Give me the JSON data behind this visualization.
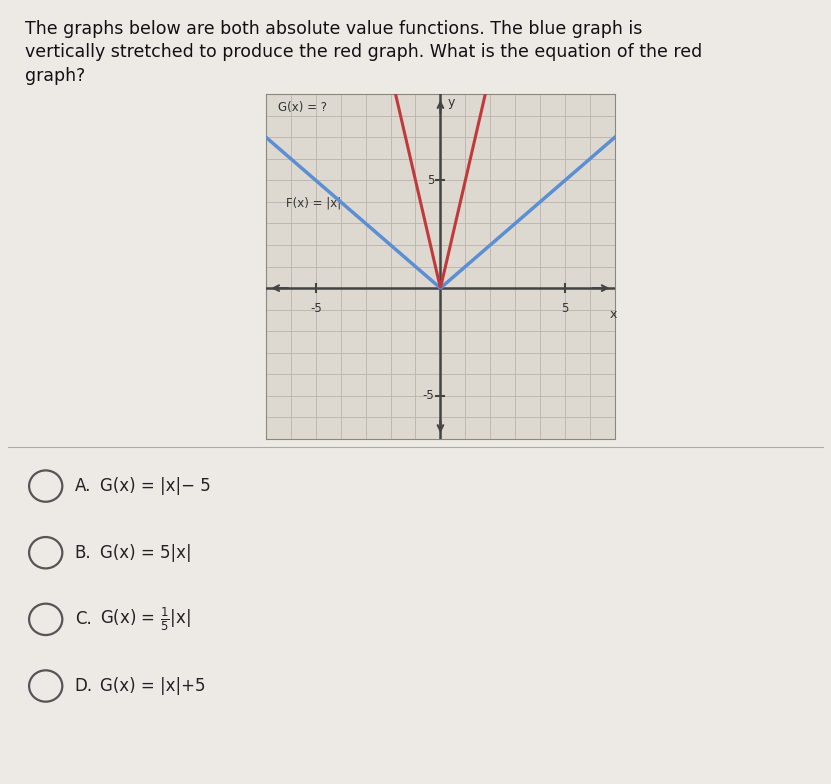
{
  "title_line1": "The graphs below are both absolute value functions. The blue graph is",
  "title_line2": "vertically stretched to produce the red graph. What is the equation of the red",
  "title_line3": "graph?",
  "title_fontsize": 12.5,
  "background_color": "#ede9e5",
  "graph_bg": "#ddd8d0",
  "grid_color": "#c0b8b0",
  "blue_label": "F(x) = |x|",
  "red_label": "G(x) = ?",
  "blue_color": "#5b8fd4",
  "red_color": "#c0393b",
  "axis_color": "#444444",
  "text_color": "#333333",
  "blue_slope": 1,
  "red_slope": 5,
  "xmin": -7,
  "xmax": 7,
  "ymin": -7,
  "ymax": 9,
  "xtick_val": [
    -5,
    5
  ],
  "ytick_val": [
    5,
    -5
  ],
  "divider_color": "#aaaaaa",
  "choice_fontsize": 12
}
